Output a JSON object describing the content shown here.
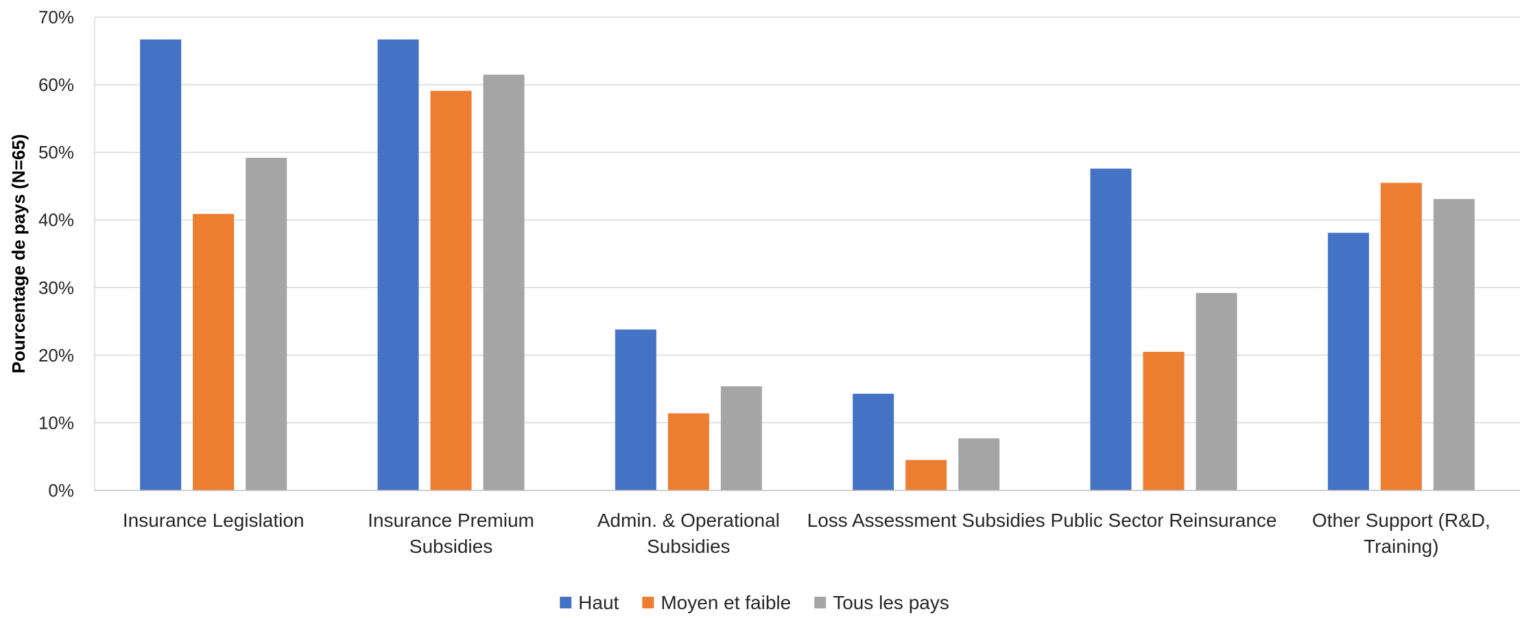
{
  "chart_data": {
    "type": "bar",
    "title": "",
    "xlabel": "",
    "ylabel": "Pourcentage de pays (N=65)",
    "ylim": [
      0,
      70
    ],
    "yticks": [
      "0%",
      "10%",
      "20%",
      "30%",
      "40%",
      "50%",
      "60%",
      "70%"
    ],
    "grid": true,
    "legend_position": "bottom",
    "categories": [
      [
        "Insurance Legislation"
      ],
      [
        "Insurance Premium",
        "Subsidies"
      ],
      [
        "Admin. & Operational",
        "Subsidies"
      ],
      [
        "Loss Assessment Subsidies"
      ],
      [
        "Public Sector Reinsurance"
      ],
      [
        "Other Support (R&D,",
        "Training)"
      ]
    ],
    "series": [
      {
        "name": "Haut",
        "color": "#4472C4",
        "values": [
          66.7,
          66.7,
          23.8,
          14.3,
          47.6,
          38.1
        ]
      },
      {
        "name": "Moyen et faible",
        "color": "#ED7D31",
        "values": [
          40.9,
          59.1,
          11.4,
          4.5,
          20.5,
          45.5
        ]
      },
      {
        "name": "Tous les pays",
        "color": "#A5A5A5",
        "values": [
          49.2,
          61.5,
          15.4,
          7.7,
          29.2,
          43.1
        ]
      }
    ]
  }
}
